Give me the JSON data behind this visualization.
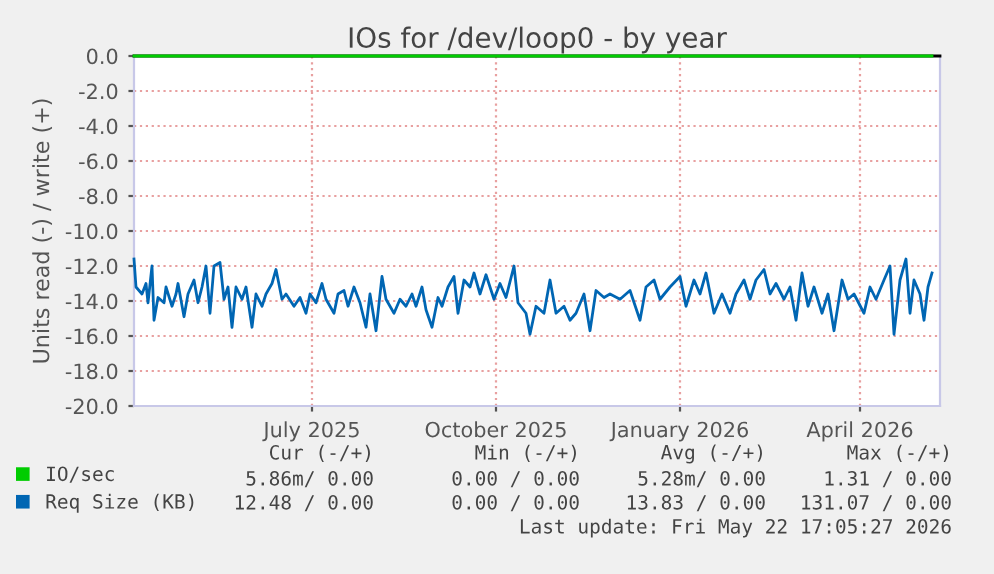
{
  "chart_data": {
    "type": "line",
    "title": "IOs for /dev/loop0 - by year",
    "ylabel": "Units read (-) / write (+)",
    "xlim": [
      "2025-04-03",
      "2026-05-11"
    ],
    "xticks": [
      {
        "value": "2025-07-01",
        "label": "July 2025"
      },
      {
        "value": "2025-10-01",
        "label": "October 2025"
      },
      {
        "value": "2026-01-01",
        "label": "January 2026"
      },
      {
        "value": "2026-04-01",
        "label": "April 2026"
      }
    ],
    "ylim": [
      -20,
      0
    ],
    "yticks": [
      {
        "value": 0,
        "label": "0.0"
      },
      {
        "value": -2,
        "label": "-2.0"
      },
      {
        "value": -4,
        "label": "-4.0"
      },
      {
        "value": -6,
        "label": "-6.0"
      },
      {
        "value": -8,
        "label": "-8.0"
      },
      {
        "value": -10,
        "label": "-10.0"
      },
      {
        "value": -12,
        "label": "-12.0"
      },
      {
        "value": -14,
        "label": "-14.0"
      },
      {
        "value": -16,
        "label": "-16.0"
      },
      {
        "value": -18,
        "label": "-18.0"
      },
      {
        "value": -20,
        "label": "-20.0"
      }
    ],
    "grid": true,
    "legend": "bottom left",
    "marker": "none",
    "line_style": "solid",
    "series": [
      {
        "name": "IO/sec",
        "color": "#00cc00",
        "x": [
          "2025-04-03",
          "2026-05-07"
        ],
        "values": [
          0.0,
          0.0
        ]
      },
      {
        "name": "Req Size (KB)",
        "color": "#0066b3",
        "x": [
          "2025-04-03",
          "2025-04-04",
          "2025-04-07",
          "2025-04-09",
          "2025-04-10",
          "2025-04-12",
          "2025-04-13",
          "2025-04-15",
          "2025-04-18",
          "2025-04-19",
          "2025-04-22",
          "2025-04-24",
          "2025-04-25",
          "2025-04-28",
          "2025-04-30",
          "2025-05-03",
          "2025-05-05",
          "2025-05-07",
          "2025-05-09",
          "2025-05-11",
          "2025-05-13",
          "2025-05-16",
          "2025-05-18",
          "2025-05-20",
          "2025-05-22",
          "2025-05-24",
          "2025-05-27",
          "2025-05-29",
          "2025-06-01",
          "2025-06-03",
          "2025-06-06",
          "2025-06-08",
          "2025-06-11",
          "2025-06-13",
          "2025-06-16",
          "2025-06-18",
          "2025-06-22",
          "2025-06-25",
          "2025-06-28",
          "2025-06-30",
          "2025-07-03",
          "2025-07-06",
          "2025-07-08",
          "2025-07-12",
          "2025-07-14",
          "2025-07-17",
          "2025-07-19",
          "2025-07-22",
          "2025-07-25",
          "2025-07-28",
          "2025-07-30",
          "2025-08-02",
          "2025-08-05",
          "2025-08-07",
          "2025-08-11",
          "2025-08-14",
          "2025-08-17",
          "2025-08-20",
          "2025-08-22",
          "2025-08-25",
          "2025-08-27",
          "2025-08-30",
          "2025-09-02",
          "2025-09-04",
          "2025-09-07",
          "2025-09-10",
          "2025-09-12",
          "2025-09-15",
          "2025-09-18",
          "2025-09-20",
          "2025-09-23",
          "2025-09-26",
          "2025-09-30",
          "2025-10-03",
          "2025-10-06",
          "2025-10-10",
          "2025-10-12",
          "2025-10-16",
          "2025-10-18",
          "2025-10-21",
          "2025-10-25",
          "2025-10-28",
          "2025-10-31",
          "2025-11-04",
          "2025-11-07",
          "2025-11-10",
          "2025-11-14",
          "2025-11-17",
          "2025-11-20",
          "2025-11-24",
          "2025-11-27",
          "2025-12-02",
          "2025-12-07",
          "2025-12-12",
          "2025-12-15",
          "2025-12-19",
          "2025-12-22",
          "2025-12-27",
          "2026-01-01",
          "2026-01-04",
          "2026-01-08",
          "2026-01-11",
          "2026-01-14",
          "2026-01-18",
          "2026-01-22",
          "2026-01-26",
          "2026-01-29",
          "2026-02-02",
          "2026-02-05",
          "2026-02-08",
          "2026-02-12",
          "2026-02-15",
          "2026-02-18",
          "2026-02-22",
          "2026-02-25",
          "2026-02-28",
          "2026-03-03",
          "2026-03-06",
          "2026-03-09",
          "2026-03-13",
          "2026-03-16",
          "2026-03-19",
          "2026-03-23",
          "2026-03-26",
          "2026-03-29",
          "2026-04-03",
          "2026-04-06",
          "2026-04-09",
          "2026-04-13",
          "2026-04-16",
          "2026-04-18",
          "2026-04-21",
          "2026-04-24",
          "2026-04-26",
          "2026-04-28",
          "2026-05-01",
          "2026-05-03",
          "2026-05-05",
          "2026-05-07"
        ],
        "values": [
          -11.6,
          -13.2,
          -13.6,
          -13.0,
          -14.1,
          -12.0,
          -15.1,
          -13.8,
          -14.1,
          -13.2,
          -14.3,
          -13.6,
          -13.0,
          -14.9,
          -13.6,
          -12.8,
          -14.1,
          -13.2,
          -12.0,
          -14.7,
          -12.0,
          -11.8,
          -13.9,
          -13.2,
          -15.5,
          -13.2,
          -13.9,
          -13.2,
          -15.5,
          -13.6,
          -14.3,
          -13.6,
          -13.0,
          -12.2,
          -13.9,
          -13.6,
          -14.3,
          -13.8,
          -14.7,
          -13.6,
          -14.1,
          -13.0,
          -13.9,
          -14.7,
          -13.6,
          -13.4,
          -14.3,
          -13.2,
          -14.1,
          -15.5,
          -13.6,
          -15.7,
          -12.6,
          -13.9,
          -14.7,
          -13.9,
          -14.3,
          -13.6,
          -14.3,
          -13.2,
          -14.5,
          -15.5,
          -13.8,
          -14.3,
          -13.2,
          -12.6,
          -14.7,
          -12.8,
          -13.2,
          -12.4,
          -13.6,
          -12.5,
          -13.9,
          -13.0,
          -13.8,
          -12.0,
          -14.1,
          -14.7,
          -15.9,
          -14.3,
          -14.7,
          -12.8,
          -14.7,
          -14.3,
          -15.1,
          -14.7,
          -13.6,
          -15.7,
          -13.4,
          -13.8,
          -13.6,
          -13.9,
          -13.4,
          -15.1,
          -13.2,
          -12.8,
          -13.9,
          -13.2,
          -12.6,
          -14.3,
          -12.8,
          -13.6,
          -12.4,
          -14.7,
          -13.6,
          -14.7,
          -13.6,
          -12.8,
          -13.9,
          -12.8,
          -12.2,
          -13.6,
          -13.0,
          -13.9,
          -13.2,
          -15.1,
          -12.4,
          -14.3,
          -13.2,
          -14.7,
          -13.6,
          -15.7,
          -12.8,
          -13.9,
          -13.6,
          -14.7,
          -13.2,
          -13.9,
          -12.8,
          -12.0,
          -15.9,
          -12.8,
          -11.6,
          -14.7,
          -12.8,
          -13.6,
          -15.1,
          -13.2,
          -12.4
        ]
      }
    ],
    "annotations": [
      "Cur (-/+)",
      "Min (-/+)",
      "Avg (-/+)",
      "Max (-/+)",
      "5.86m/ 0.00",
      "0.00 / 0.00",
      "5.28m/ 0.00",
      "1.31 / 0.00",
      "12.48 / 0.00",
      "0.00 / 0.00",
      "13.83 / 0.00",
      "131.07 / 0.00",
      "Last update: Fri May 22 17:05:27 2026"
    ]
  }
}
